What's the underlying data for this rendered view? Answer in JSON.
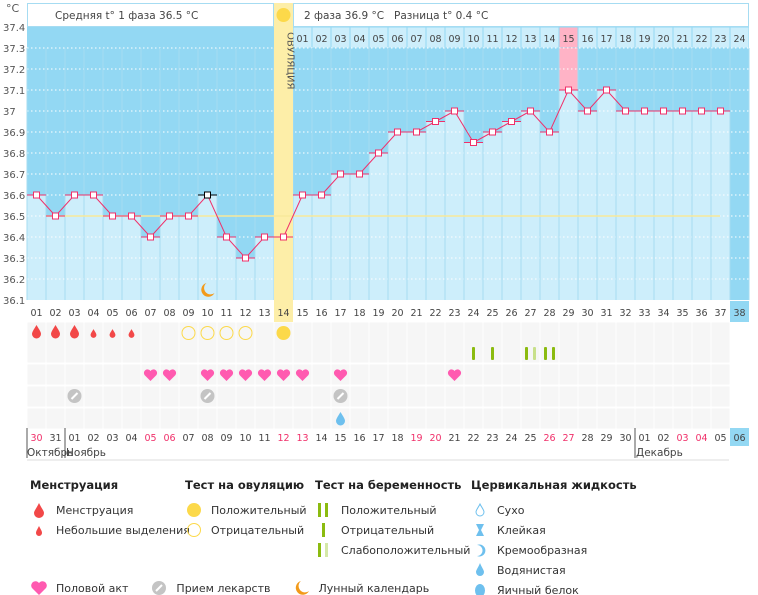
{
  "header": {
    "phase1_label": "Средняя t° 1 фаза",
    "phase1_value": "36.5 °C",
    "phase2_label": "2 фаза",
    "phase2_value": "36.9 °C",
    "diff_label": "Разница t°",
    "diff_value": "0.4 °C",
    "ovulation_label": "ОВУЛЯЦИЯ"
  },
  "chart_data": {
    "type": "line",
    "ylabel": "°C",
    "ylim": [
      36.1,
      37.4
    ],
    "yticks": [
      "37.4",
      "37.3",
      "37.2",
      "37.1",
      "37",
      "36.9",
      "36.8",
      "36.7",
      "36.6",
      "36.5",
      "36.4",
      "36.3",
      "36.2",
      "36.1"
    ],
    "cycle_days": [
      "01",
      "02",
      "03",
      "04",
      "05",
      "06",
      "07",
      "08",
      "09",
      "10",
      "11",
      "12",
      "13",
      "14",
      "15",
      "16",
      "17",
      "18",
      "19",
      "20",
      "21",
      "22",
      "23",
      "24",
      "25",
      "26",
      "27",
      "28",
      "29",
      "30",
      "31",
      "32",
      "33",
      "34",
      "35",
      "36",
      "37",
      "38"
    ],
    "temperature": [
      36.6,
      36.5,
      36.6,
      36.6,
      36.5,
      36.5,
      36.4,
      36.5,
      36.5,
      36.6,
      36.4,
      36.3,
      36.4,
      36.4,
      36.6,
      36.6,
      36.7,
      36.7,
      36.8,
      36.9,
      36.9,
      36.95,
      37.0,
      36.85,
      36.9,
      36.95,
      37.0,
      36.9,
      37.1,
      37.0,
      37.1,
      37.0,
      37.0,
      37.0,
      37.0,
      37.0,
      37.0,
      null
    ],
    "coverline": 36.5,
    "ovulation_day": 14,
    "selected_day": 10,
    "highlighted_day": 29,
    "current_day": 38,
    "phase2_days": [
      "01",
      "02",
      "03",
      "04",
      "05",
      "06",
      "07",
      "08",
      "09",
      "10",
      "11",
      "12",
      "13",
      "14",
      "15",
      "16",
      "17",
      "18",
      "19",
      "20",
      "21",
      "22",
      "23",
      "24"
    ],
    "calendar_dates": [
      "30",
      "31",
      "01",
      "02",
      "03",
      "04",
      "05",
      "06",
      "07",
      "08",
      "09",
      "10",
      "11",
      "12",
      "13",
      "14",
      "15",
      "16",
      "17",
      "18",
      "19",
      "20",
      "21",
      "22",
      "23",
      "24",
      "25",
      "26",
      "27",
      "28",
      "29",
      "30",
      "01",
      "02",
      "03",
      "04",
      "05",
      "06"
    ],
    "weekend_dates_idx": [
      0,
      6,
      7,
      13,
      14,
      20,
      21,
      27,
      28,
      34,
      35
    ],
    "months": [
      {
        "name": "Октябрь",
        "start": 1
      },
      {
        "name": "Ноябрь",
        "start": 3
      },
      {
        "name": "Декабрь",
        "start": 33
      }
    ],
    "menstruation": {
      "heavy": [
        1,
        2,
        3
      ],
      "light": [
        4,
        5,
        6
      ]
    },
    "ovulation_test": {
      "negative": [
        9,
        10,
        11,
        12
      ],
      "positive": [
        14
      ]
    },
    "pregnancy_test": {
      "negative": [
        24,
        25
      ],
      "weak_positive": [
        27
      ],
      "positive": [
        28
      ]
    },
    "intercourse": [
      7,
      8,
      10,
      11,
      12,
      13,
      14,
      15,
      17,
      23
    ],
    "medication": [
      3,
      10,
      17
    ],
    "cervical_fluid": {
      "watery": [
        17
      ]
    },
    "lunar": [
      10
    ]
  },
  "colors": {
    "above": "#93d8f3",
    "below": "#cdeefb",
    "line": "#f0306a",
    "coverline": "#f8e89a",
    "ovulation": "#fdeea8",
    "highlight": "#ffb3c6",
    "menstruation": "#f24848",
    "ovulation_test": "#fcd94a",
    "pregnancy": "#8bbb10",
    "heart": "#ff5ab0",
    "pill": "#c4c4c4",
    "fluid": "#6ec0ee",
    "moon": "#f29a1a",
    "weekend": "#f0306a"
  },
  "legend": {
    "menstruation": {
      "title": "Менструация",
      "items": [
        "Менструация",
        "Небольшие выделения"
      ]
    },
    "ovulation_test": {
      "title": "Тест на овуляцию",
      "items": [
        "Положительный",
        "Отрицательный"
      ]
    },
    "pregnancy_test": {
      "title": "Тест на беременность",
      "items": [
        "Положительный",
        "Отрицательный",
        "Слабоположительный"
      ]
    },
    "cervical": {
      "title": "Цервикальная жидкость",
      "items": [
        "Сухо",
        "Клейкая",
        "Кремообразная",
        "Водянистая",
        "Яичный белок"
      ]
    },
    "other": [
      "Половой акт",
      "Прием лекарств",
      "Лунный календарь"
    ]
  }
}
